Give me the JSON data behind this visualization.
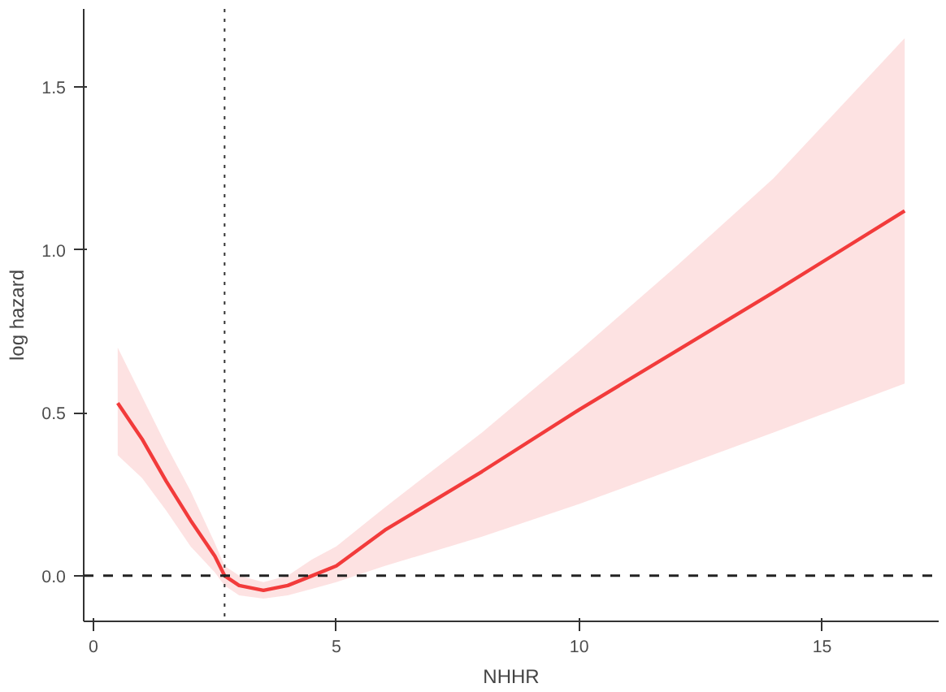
{
  "chart_data": {
    "type": "line",
    "xlabel": "NHHR",
    "ylabel": "log hazard",
    "x": [
      0.5,
      1,
      1.5,
      2,
      2.5,
      2.7,
      3,
      3.5,
      4,
      4.5,
      5,
      6,
      8,
      10,
      12,
      14,
      16.7
    ],
    "series": [
      {
        "color": "#f23b3b",
        "values": [
          0.53,
          0.42,
          0.29,
          0.17,
          0.06,
          0.0,
          -0.03,
          -0.045,
          -0.03,
          0.0,
          0.03,
          0.14,
          0.32,
          0.51,
          0.69,
          0.87,
          1.12
        ],
        "lower": [
          0.37,
          0.3,
          0.2,
          0.09,
          0.01,
          -0.03,
          -0.06,
          -0.07,
          -0.06,
          -0.04,
          -0.02,
          0.03,
          0.12,
          0.22,
          0.33,
          0.44,
          0.59
        ],
        "upper": [
          0.7,
          0.55,
          0.4,
          0.26,
          0.1,
          0.03,
          0.0,
          -0.02,
          0.0,
          0.05,
          0.09,
          0.21,
          0.44,
          0.69,
          0.95,
          1.22,
          1.65
        ]
      }
    ],
    "xlim": [
      -0.2,
      17.4
    ],
    "ylim": [
      -0.14,
      1.74
    ],
    "xticks": [
      0,
      5,
      10,
      15
    ],
    "yticks": [
      {
        "value": 0,
        "label": "0.0"
      },
      {
        "value": 0.5,
        "label": "0.5"
      },
      {
        "value": 1,
        "label": "1.0"
      },
      {
        "value": 1.5,
        "label": "1.5"
      }
    ],
    "ref_lines": [
      {
        "axis": "x",
        "value": 2.7,
        "line_style": "dotted",
        "color": "#333333"
      },
      {
        "axis": "y",
        "value": 0,
        "line_style": "dashed",
        "color": "#222222"
      }
    ],
    "grid": false,
    "line_style": "solid"
  }
}
